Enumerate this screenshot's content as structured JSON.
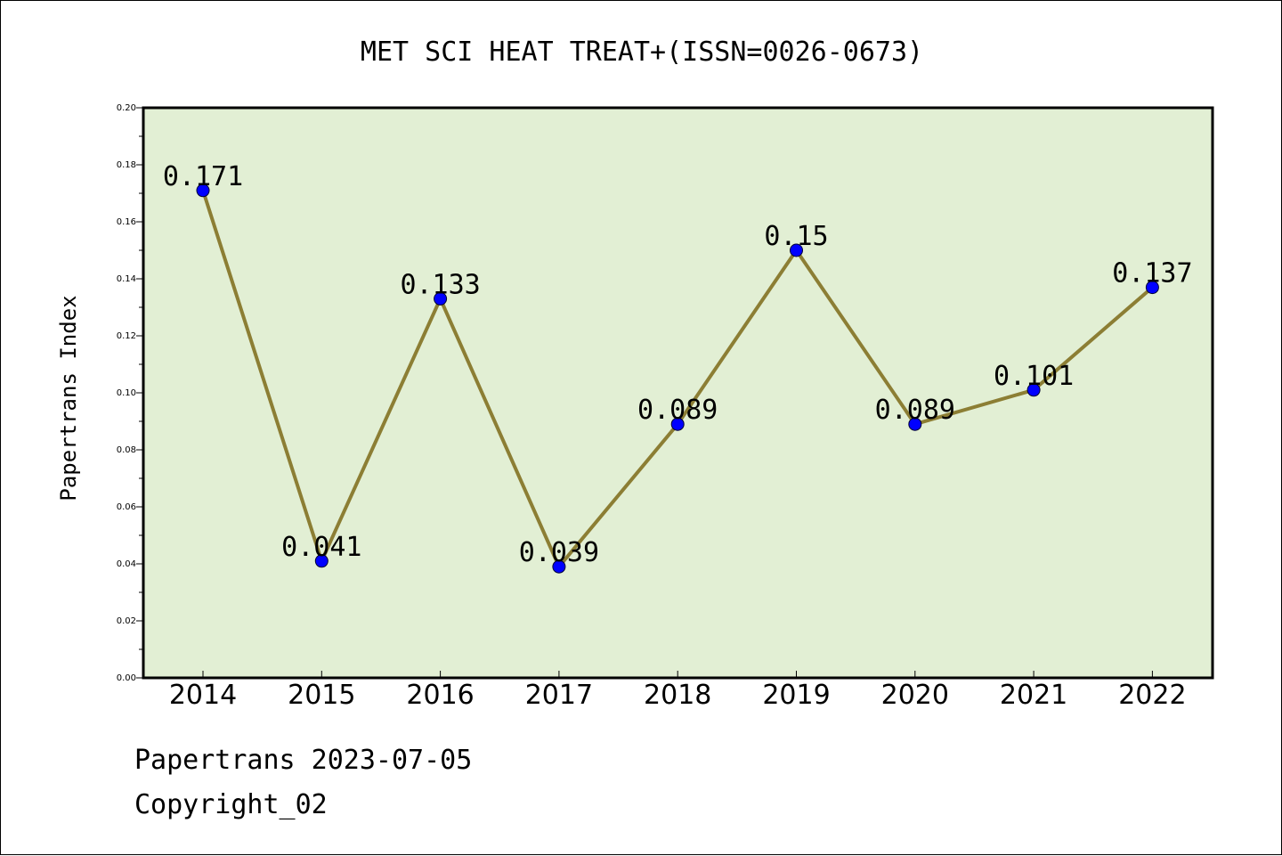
{
  "chart_data": {
    "type": "line",
    "title": "MET SCI HEAT TREAT+(ISSN=0026-0673)",
    "xlabel": "",
    "ylabel": "Papertrans Index",
    "categories": [
      "2014",
      "2015",
      "2016",
      "2017",
      "2018",
      "2019",
      "2020",
      "2021",
      "2022"
    ],
    "values": [
      0.171,
      0.041,
      0.133,
      0.039,
      0.089,
      0.15,
      0.089,
      0.101,
      0.137
    ],
    "data_labels": [
      "0.171",
      "0.041",
      "0.133",
      "0.039",
      "0.089",
      "0.15",
      "0.089",
      "0.101",
      "0.137"
    ],
    "ylim": [
      0,
      0.2
    ],
    "yticks": [
      0.0,
      0.02,
      0.04,
      0.06,
      0.08,
      0.1,
      0.12,
      0.14,
      0.16,
      0.18,
      0.2
    ],
    "ytick_labels": [
      "0.00",
      "0.02",
      "0.04",
      "0.06",
      "0.08",
      "0.10",
      "0.12",
      "0.14",
      "0.16",
      "0.18",
      "0.20"
    ],
    "grid": false,
    "legend": "none",
    "colors": {
      "line": "#8c7e34",
      "marker": "#0000ff",
      "plot_background": "#e2efd4"
    }
  },
  "footer": {
    "source": "Papertrans 2023-07-05",
    "copyright": "Copyright_02"
  }
}
